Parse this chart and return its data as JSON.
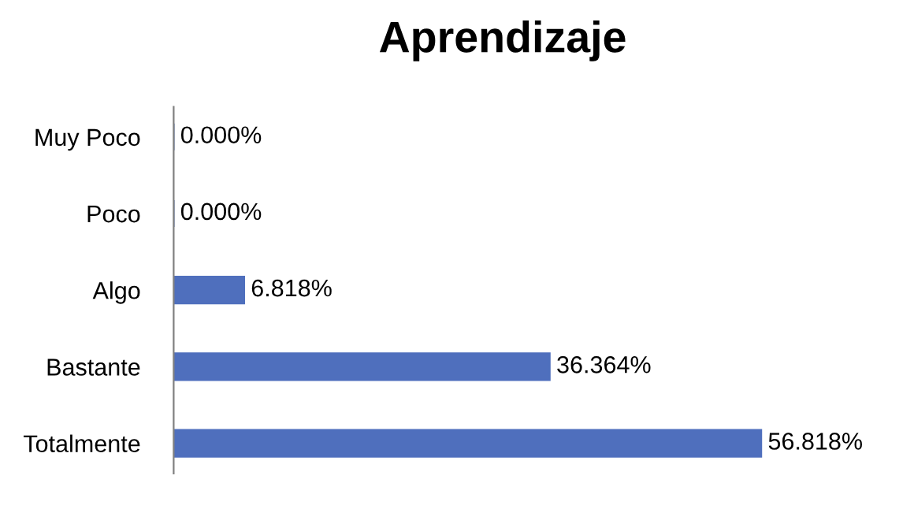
{
  "chart_data": {
    "type": "bar",
    "orientation": "horizontal",
    "title": "Aprendizaje",
    "categories": [
      "Muy Poco",
      "Poco",
      "Algo",
      "Bastante",
      "Totalmente"
    ],
    "values": [
      0,
      0,
      6.818,
      36.364,
      56.818
    ],
    "value_labels": [
      "0.000%",
      "0.000%",
      "6.818%",
      "36.364%",
      "56.818%"
    ],
    "color": "#4f6fbd",
    "tick_labels": "y",
    "grid": false,
    "legend": false
  }
}
